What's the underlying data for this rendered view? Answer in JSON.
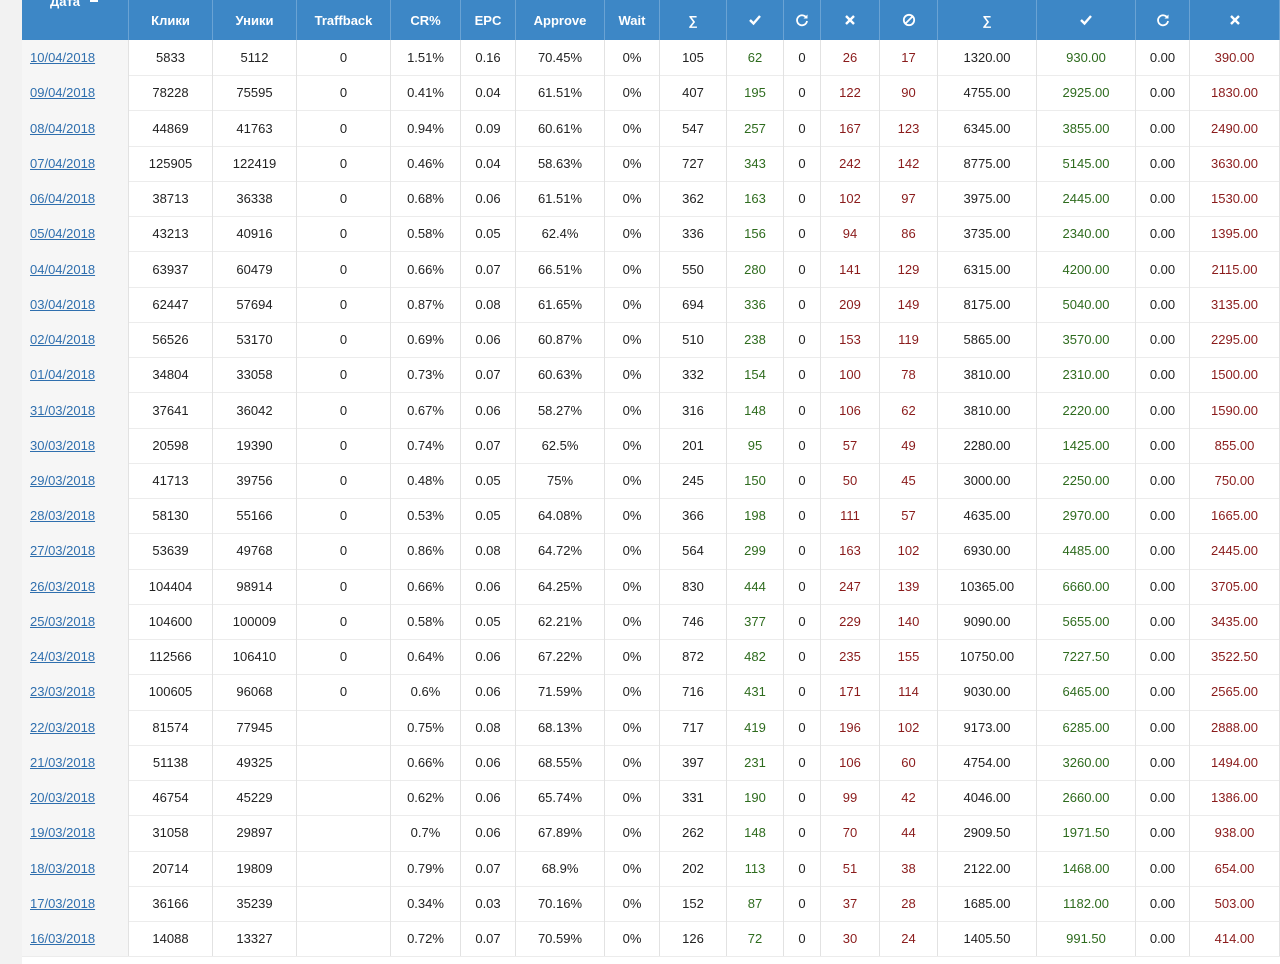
{
  "header": [
    "Дата",
    "Клики",
    "Уники",
    "Traffback",
    "CR%",
    "EPC",
    "Approve",
    "Wait",
    "∑",
    "∑"
  ],
  "rows": [
    [
      "10/04/2018",
      "5833",
      "5112",
      "0",
      "1.51%",
      "0.16",
      "70.45%",
      "0%",
      "105",
      "62",
      "0",
      "26",
      "17",
      "1320.00",
      "930.00",
      "0.00",
      "390.00"
    ],
    [
      "09/04/2018",
      "78228",
      "75595",
      "0",
      "0.41%",
      "0.04",
      "61.51%",
      "0%",
      "407",
      "195",
      "0",
      "122",
      "90",
      "4755.00",
      "2925.00",
      "0.00",
      "1830.00"
    ],
    [
      "08/04/2018",
      "44869",
      "41763",
      "0",
      "0.94%",
      "0.09",
      "60.61%",
      "0%",
      "547",
      "257",
      "0",
      "167",
      "123",
      "6345.00",
      "3855.00",
      "0.00",
      "2490.00"
    ],
    [
      "07/04/2018",
      "125905",
      "122419",
      "0",
      "0.46%",
      "0.04",
      "58.63%",
      "0%",
      "727",
      "343",
      "0",
      "242",
      "142",
      "8775.00",
      "5145.00",
      "0.00",
      "3630.00"
    ],
    [
      "06/04/2018",
      "38713",
      "36338",
      "0",
      "0.68%",
      "0.06",
      "61.51%",
      "0%",
      "362",
      "163",
      "0",
      "102",
      "97",
      "3975.00",
      "2445.00",
      "0.00",
      "1530.00"
    ],
    [
      "05/04/2018",
      "43213",
      "40916",
      "0",
      "0.58%",
      "0.05",
      "62.4%",
      "0%",
      "336",
      "156",
      "0",
      "94",
      "86",
      "3735.00",
      "2340.00",
      "0.00",
      "1395.00"
    ],
    [
      "04/04/2018",
      "63937",
      "60479",
      "0",
      "0.66%",
      "0.07",
      "66.51%",
      "0%",
      "550",
      "280",
      "0",
      "141",
      "129",
      "6315.00",
      "4200.00",
      "0.00",
      "2115.00"
    ],
    [
      "03/04/2018",
      "62447",
      "57694",
      "0",
      "0.87%",
      "0.08",
      "61.65%",
      "0%",
      "694",
      "336",
      "0",
      "209",
      "149",
      "8175.00",
      "5040.00",
      "0.00",
      "3135.00"
    ],
    [
      "02/04/2018",
      "56526",
      "53170",
      "0",
      "0.69%",
      "0.06",
      "60.87%",
      "0%",
      "510",
      "238",
      "0",
      "153",
      "119",
      "5865.00",
      "3570.00",
      "0.00",
      "2295.00"
    ],
    [
      "01/04/2018",
      "34804",
      "33058",
      "0",
      "0.73%",
      "0.07",
      "60.63%",
      "0%",
      "332",
      "154",
      "0",
      "100",
      "78",
      "3810.00",
      "2310.00",
      "0.00",
      "1500.00"
    ],
    [
      "31/03/2018",
      "37641",
      "36042",
      "0",
      "0.67%",
      "0.06",
      "58.27%",
      "0%",
      "316",
      "148",
      "0",
      "106",
      "62",
      "3810.00",
      "2220.00",
      "0.00",
      "1590.00"
    ],
    [
      "30/03/2018",
      "20598",
      "19390",
      "0",
      "0.74%",
      "0.07",
      "62.5%",
      "0%",
      "201",
      "95",
      "0",
      "57",
      "49",
      "2280.00",
      "1425.00",
      "0.00",
      "855.00"
    ],
    [
      "29/03/2018",
      "41713",
      "39756",
      "0",
      "0.48%",
      "0.05",
      "75%",
      "0%",
      "245",
      "150",
      "0",
      "50",
      "45",
      "3000.00",
      "2250.00",
      "0.00",
      "750.00"
    ],
    [
      "28/03/2018",
      "58130",
      "55166",
      "0",
      "0.53%",
      "0.05",
      "64.08%",
      "0%",
      "366",
      "198",
      "0",
      "111",
      "57",
      "4635.00",
      "2970.00",
      "0.00",
      "1665.00"
    ],
    [
      "27/03/2018",
      "53639",
      "49768",
      "0",
      "0.86%",
      "0.08",
      "64.72%",
      "0%",
      "564",
      "299",
      "0",
      "163",
      "102",
      "6930.00",
      "4485.00",
      "0.00",
      "2445.00"
    ],
    [
      "26/03/2018",
      "104404",
      "98914",
      "0",
      "0.66%",
      "0.06",
      "64.25%",
      "0%",
      "830",
      "444",
      "0",
      "247",
      "139",
      "10365.00",
      "6660.00",
      "0.00",
      "3705.00"
    ],
    [
      "25/03/2018",
      "104600",
      "100009",
      "0",
      "0.58%",
      "0.05",
      "62.21%",
      "0%",
      "746",
      "377",
      "0",
      "229",
      "140",
      "9090.00",
      "5655.00",
      "0.00",
      "3435.00"
    ],
    [
      "24/03/2018",
      "112566",
      "106410",
      "0",
      "0.64%",
      "0.06",
      "67.22%",
      "0%",
      "872",
      "482",
      "0",
      "235",
      "155",
      "10750.00",
      "7227.50",
      "0.00",
      "3522.50"
    ],
    [
      "23/03/2018",
      "100605",
      "96068",
      "0",
      "0.6%",
      "0.06",
      "71.59%",
      "0%",
      "716",
      "431",
      "0",
      "171",
      "114",
      "9030.00",
      "6465.00",
      "0.00",
      "2565.00"
    ],
    [
      "22/03/2018",
      "81574",
      "77945",
      null,
      "0.75%",
      "0.08",
      "68.13%",
      "0%",
      "717",
      "419",
      "0",
      "196",
      "102",
      "9173.00",
      "6285.00",
      "0.00",
      "2888.00"
    ],
    [
      "21/03/2018",
      "51138",
      "49325",
      null,
      "0.66%",
      "0.06",
      "68.55%",
      "0%",
      "397",
      "231",
      "0",
      "106",
      "60",
      "4754.00",
      "3260.00",
      "0.00",
      "1494.00"
    ],
    [
      "20/03/2018",
      "46754",
      "45229",
      null,
      "0.62%",
      "0.06",
      "65.74%",
      "0%",
      "331",
      "190",
      "0",
      "99",
      "42",
      "4046.00",
      "2660.00",
      "0.00",
      "1386.00"
    ],
    [
      "19/03/2018",
      "31058",
      "29897",
      null,
      "0.7%",
      "0.06",
      "67.89%",
      "0%",
      "262",
      "148",
      "0",
      "70",
      "44",
      "2909.50",
      "1971.50",
      "0.00",
      "938.00"
    ],
    [
      "18/03/2018",
      "20714",
      "19809",
      null,
      "0.79%",
      "0.07",
      "68.9%",
      "0%",
      "202",
      "113",
      "0",
      "51",
      "38",
      "2122.00",
      "1468.00",
      "0.00",
      "654.00"
    ],
    [
      "17/03/2018",
      "36166",
      "35239",
      null,
      "0.34%",
      "0.03",
      "70.16%",
      "0%",
      "152",
      "87",
      "0",
      "37",
      "28",
      "1685.00",
      "1182.00",
      "0.00",
      "503.00"
    ],
    [
      "16/03/2018",
      "14088",
      "13327",
      null,
      "0.72%",
      "0.07",
      "70.59%",
      "0%",
      "126",
      "72",
      "0",
      "30",
      "24",
      "1405.50",
      "991.50",
      "0.00",
      "414.00"
    ]
  ]
}
